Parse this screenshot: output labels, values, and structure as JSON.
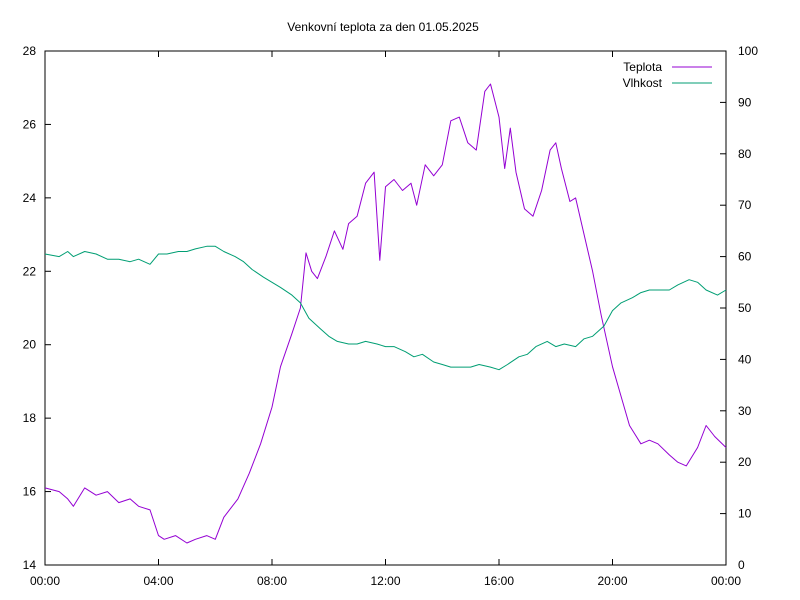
{
  "chart_data": {
    "type": "line",
    "title": "Venkovní teplota za den 01.05.2025",
    "x_ticks": [
      "00:00",
      "04:00",
      "08:00",
      "12:00",
      "16:00",
      "20:00",
      "00:00"
    ],
    "x_range_hours": [
      0,
      24
    ],
    "y_left": {
      "range": [
        14,
        28
      ],
      "ticks": [
        14,
        16,
        18,
        20,
        22,
        24,
        26,
        28
      ]
    },
    "y_right": {
      "range": [
        0,
        100
      ],
      "ticks": [
        0,
        10,
        20,
        30,
        40,
        50,
        60,
        70,
        80,
        90,
        100
      ]
    },
    "legend_position": "top-right",
    "grid": false,
    "series": [
      {
        "name": "Teplota",
        "axis": "left",
        "color": "#9400d3",
        "x": [
          0,
          0.5,
          0.8,
          1.0,
          1.4,
          1.8,
          2.2,
          2.6,
          3.0,
          3.3,
          3.7,
          4.0,
          4.2,
          4.6,
          5.0,
          5.3,
          5.7,
          6.0,
          6.3,
          6.8,
          7.2,
          7.6,
          8.0,
          8.3,
          8.7,
          9.0,
          9.2,
          9.4,
          9.6,
          9.9,
          10.2,
          10.5,
          10.7,
          11.0,
          11.3,
          11.6,
          11.8,
          12.0,
          12.3,
          12.6,
          12.9,
          13.1,
          13.4,
          13.7,
          14.0,
          14.3,
          14.6,
          14.9,
          15.2,
          15.5,
          15.7,
          16.0,
          16.2,
          16.4,
          16.6,
          16.9,
          17.2,
          17.5,
          17.8,
          18.0,
          18.2,
          18.5,
          18.7,
          19.0,
          19.3,
          19.6,
          20.0,
          20.3,
          20.6,
          21.0,
          21.3,
          21.6,
          22.0,
          22.3,
          22.6,
          23.0,
          23.3,
          23.6,
          24.0
        ],
        "y": [
          16.1,
          16.0,
          15.8,
          15.6,
          16.1,
          15.9,
          16.0,
          15.7,
          15.8,
          15.6,
          15.5,
          14.8,
          14.7,
          14.8,
          14.6,
          14.7,
          14.8,
          14.7,
          15.3,
          15.8,
          16.5,
          17.3,
          18.3,
          19.4,
          20.3,
          21.0,
          22.5,
          22.0,
          21.8,
          22.4,
          23.1,
          22.6,
          23.3,
          23.5,
          24.4,
          24.7,
          22.3,
          24.3,
          24.5,
          24.2,
          24.4,
          23.8,
          24.9,
          24.6,
          24.9,
          26.1,
          26.2,
          25.5,
          25.3,
          26.9,
          27.1,
          26.2,
          24.8,
          25.9,
          24.7,
          23.7,
          23.5,
          24.2,
          25.3,
          25.5,
          24.8,
          23.9,
          24.0,
          23.0,
          22.0,
          20.8,
          19.4,
          18.6,
          17.8,
          17.3,
          17.4,
          17.3,
          17.0,
          16.8,
          16.7,
          17.2,
          17.8,
          17.5,
          17.2
        ]
      },
      {
        "name": "Vlhkost",
        "axis": "right",
        "color": "#009e73",
        "x": [
          0,
          0.5,
          0.8,
          1.0,
          1.4,
          1.8,
          2.2,
          2.6,
          3.0,
          3.3,
          3.7,
          4.0,
          4.3,
          4.7,
          5.0,
          5.3,
          5.7,
          6.0,
          6.3,
          6.7,
          7.0,
          7.3,
          7.7,
          8.0,
          8.3,
          8.7,
          9.0,
          9.3,
          9.7,
          10.0,
          10.3,
          10.7,
          11.0,
          11.3,
          11.7,
          12.0,
          12.3,
          12.7,
          13.0,
          13.3,
          13.7,
          14.0,
          14.3,
          14.7,
          15.0,
          15.3,
          15.7,
          16.0,
          16.3,
          16.7,
          17.0,
          17.3,
          17.7,
          18.0,
          18.3,
          18.7,
          19.0,
          19.3,
          19.7,
          20.0,
          20.3,
          20.7,
          21.0,
          21.3,
          21.7,
          22.0,
          22.3,
          22.7,
          23.0,
          23.3,
          23.7,
          24.0
        ],
        "y": [
          60.5,
          60.0,
          61.0,
          60.0,
          61.0,
          60.5,
          59.5,
          59.5,
          59.0,
          59.5,
          58.5,
          60.5,
          60.5,
          61.0,
          61.0,
          61.5,
          62.0,
          62.0,
          61.0,
          60.0,
          59.0,
          57.5,
          56.0,
          55.0,
          54.0,
          52.5,
          51.0,
          48.0,
          46.0,
          44.5,
          43.5,
          43.0,
          43.0,
          43.5,
          43.0,
          42.5,
          42.5,
          41.5,
          40.5,
          41.0,
          39.5,
          39.0,
          38.5,
          38.5,
          38.5,
          39.0,
          38.5,
          38.0,
          39.0,
          40.5,
          41.0,
          42.5,
          43.5,
          42.5,
          43.0,
          42.5,
          44.0,
          44.5,
          46.5,
          49.5,
          51.0,
          52.0,
          53.0,
          53.5,
          53.5,
          53.5,
          54.5,
          55.5,
          55.0,
          53.5,
          52.5,
          53.5
        ]
      }
    ]
  }
}
